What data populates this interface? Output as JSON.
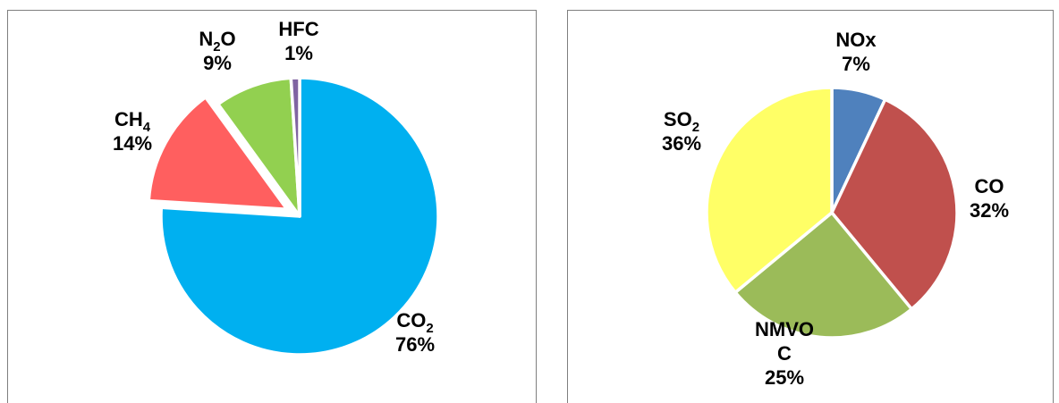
{
  "chart_data": [
    {
      "type": "pie",
      "title": "",
      "slices": [
        {
          "label_main": "CO",
          "label_sub": "2",
          "value": 76,
          "pct_text": "76%",
          "color": "#00b0f0",
          "exploded": false
        },
        {
          "label_main": "CH",
          "label_sub": "4",
          "value": 14,
          "pct_text": "14%",
          "color": "#ff5f5f",
          "exploded": true
        },
        {
          "label_main": "N",
          "label_sub": "2",
          "label_tail": "O",
          "value": 9,
          "pct_text": "9%",
          "color": "#92d050",
          "exploded": false
        },
        {
          "label_main": "HFC",
          "label_sub": "",
          "value": 1,
          "pct_text": "1%",
          "color": "#8064a2",
          "exploded": false
        }
      ]
    },
    {
      "type": "pie",
      "title": "",
      "slices": [
        {
          "label_main": "NOx",
          "label_sub": "",
          "value": 7,
          "pct_text": "7%",
          "color": "#4f81bd",
          "exploded": false
        },
        {
          "label_main": "CO",
          "label_sub": "",
          "value": 32,
          "pct_text": "32%",
          "color": "#c0504d",
          "exploded": false
        },
        {
          "label_main": "NMVO",
          "label_line2": "C",
          "label_sub": "",
          "value": 25,
          "pct_text": "25%",
          "color": "#9bbb59",
          "exploded": false
        },
        {
          "label_main": "SO",
          "label_sub": "2",
          "value": 36,
          "pct_text": "36%",
          "color": "#ffff66",
          "exploded": false
        }
      ]
    }
  ]
}
